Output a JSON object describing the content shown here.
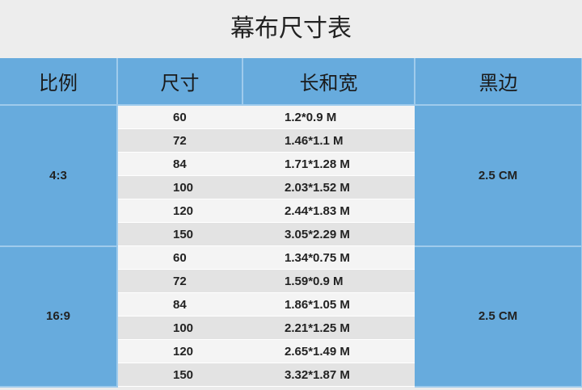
{
  "title": "幕布尺寸表",
  "headers": [
    "比例",
    "尺寸",
    "长和宽",
    "黑边"
  ],
  "groups": [
    {
      "ratio": "4:3",
      "border": "2.5 CM",
      "rows": [
        {
          "size": "60",
          "dims": "1.2*0.9 M"
        },
        {
          "size": "72",
          "dims": "1.46*1.1 M"
        },
        {
          "size": "84",
          "dims": "1.71*1.28 M"
        },
        {
          "size": "100",
          "dims": "2.03*1.52 M"
        },
        {
          "size": "120",
          "dims": "2.44*1.83 M"
        },
        {
          "size": "150",
          "dims": "3.05*2.29 M"
        }
      ]
    },
    {
      "ratio": "16:9",
      "border": "2.5 CM",
      "rows": [
        {
          "size": "60",
          "dims": "1.34*0.75 M"
        },
        {
          "size": "72",
          "dims": "1.59*0.9 M"
        },
        {
          "size": "84",
          "dims": "1.86*1.05 M"
        },
        {
          "size": "100",
          "dims": "2.21*1.25 M"
        },
        {
          "size": "120",
          "dims": "2.65*1.49 M"
        },
        {
          "size": "150",
          "dims": "3.32*1.87 M"
        }
      ]
    }
  ],
  "colors": {
    "header_blue": "#67abdd"
  }
}
